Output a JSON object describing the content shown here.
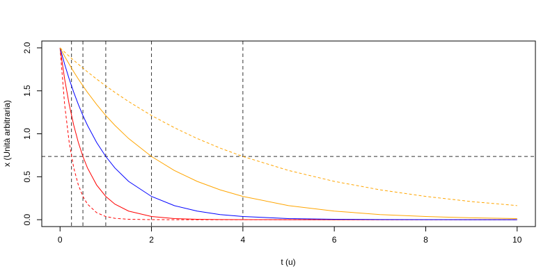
{
  "chart_data": {
    "type": "line",
    "xlabel": "t (u)",
    "ylabel": "x (Unità arbitraria)",
    "x": [
      0,
      0.1,
      0.2,
      0.3,
      0.4,
      0.5,
      0.6,
      0.8,
      1,
      1.2,
      1.5,
      2,
      2.5,
      3,
      3.5,
      4,
      5,
      6,
      7,
      8,
      9,
      10
    ],
    "series": [
      {
        "color": "#ff0000",
        "dash": "dashed",
        "values": [
          2,
          1.341,
          0.899,
          0.602,
          0.404,
          0.271,
          0.181,
          0.082,
          0.037,
          0.016,
          0.005,
          0.001,
          0,
          0,
          0,
          0,
          0,
          0,
          0,
          0,
          0,
          0
        ]
      },
      {
        "color": "#ff0000",
        "dash": "solid",
        "values": [
          2,
          1.637,
          1.341,
          1.098,
          0.899,
          0.736,
          0.602,
          0.404,
          0.271,
          0.181,
          0.1,
          0.037,
          0.013,
          0.005,
          0.002,
          0.001,
          0,
          0,
          0,
          0,
          0,
          0
        ]
      },
      {
        "color": "#0000ff",
        "dash": "solid",
        "values": [
          2,
          1.81,
          1.637,
          1.482,
          1.341,
          1.213,
          1.098,
          0.899,
          0.736,
          0.602,
          0.446,
          0.271,
          0.164,
          0.1,
          0.06,
          0.037,
          0.013,
          0.005,
          0.002,
          0.001,
          0,
          0
        ]
      },
      {
        "color": "#ffa500",
        "dash": "solid",
        "values": [
          2,
          1.902,
          1.81,
          1.721,
          1.637,
          1.558,
          1.482,
          1.341,
          1.213,
          1.098,
          0.945,
          0.736,
          0.573,
          0.446,
          0.348,
          0.271,
          0.164,
          0.1,
          0.06,
          0.037,
          0.022,
          0.013
        ]
      },
      {
        "color": "#ffa500",
        "dash": "dashed",
        "values": [
          2,
          1.951,
          1.902,
          1.855,
          1.81,
          1.765,
          1.721,
          1.637,
          1.558,
          1.482,
          1.375,
          1.213,
          1.071,
          0.945,
          0.834,
          0.736,
          0.573,
          0.446,
          0.348,
          0.271,
          0.211,
          0.164
        ]
      }
    ],
    "hlines": [
      0.736
    ],
    "vlines": [
      0.25,
      0.5,
      1,
      2,
      4
    ],
    "xlim": [
      -0.4,
      10.4
    ],
    "ylim": [
      -0.08,
      2.08
    ],
    "xticks": [
      0,
      2,
      4,
      6,
      8,
      10
    ],
    "yticks": [
      {
        "value": 0,
        "label": "0.0"
      },
      {
        "value": 0.5,
        "label": "0.5"
      },
      {
        "value": 1,
        "label": "1.0"
      },
      {
        "value": 1.5,
        "label": "1.5"
      },
      {
        "value": 2,
        "label": "2.0"
      }
    ],
    "grid": false
  }
}
